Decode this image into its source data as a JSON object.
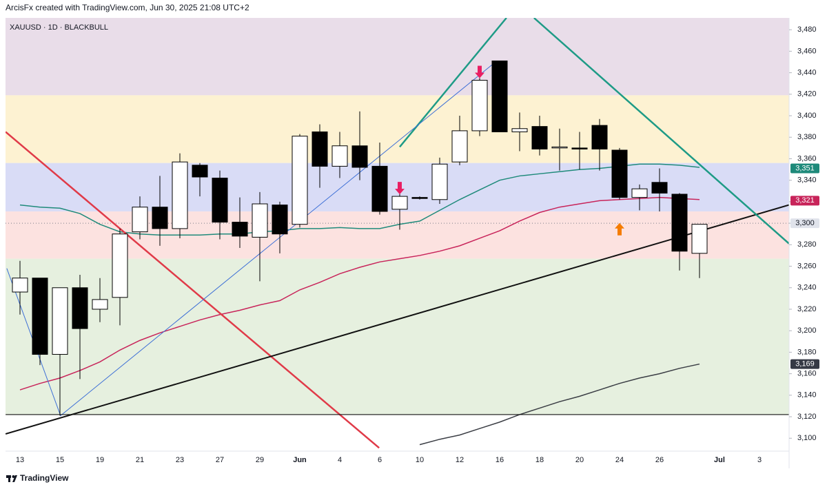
{
  "header": "ArcisFx created with TradingView.com, Jun 30, 2025 21:08 UTC+2",
  "footer": "TradingView",
  "chart_data": {
    "type": "candlestick",
    "symbol": "XAUUSD · 1D · BLACKBULL",
    "categories": [
      "13",
      null,
      "15",
      null,
      "19",
      null,
      "21",
      null,
      "23",
      null,
      "27",
      null,
      "29",
      null,
      "Jun",
      null,
      "4",
      null,
      "6",
      null,
      "10",
      null,
      "12",
      null,
      "16",
      null,
      "18",
      null,
      "20",
      null,
      "24",
      null,
      "26",
      null,
      null
    ],
    "future_ticks": [
      {
        "value": 35,
        "label": "Jul"
      },
      {
        "value": 37,
        "label": "3"
      }
    ],
    "open": [
      3236,
      3249,
      3178,
      3240,
      3220,
      3231,
      3292,
      3315,
      3295,
      3354,
      3342,
      3301,
      3287,
      3317,
      3299,
      3385,
      3353,
      3372,
      3353,
      3313,
      3324,
      3322,
      3357,
      3386,
      3451,
      3385,
      3390,
      3370,
      3370,
      3391,
      3368,
      3324,
      3338,
      3327,
      3272
    ],
    "high": [
      3265,
      3249,
      3240,
      3252,
      3249,
      3295,
      3325,
      3344,
      3365,
      3356,
      3349,
      3324,
      3329,
      3320,
      3383,
      3392,
      3385,
      3404,
      3375,
      3328,
      3325,
      3361,
      3400,
      3435,
      3451,
      3403,
      3400,
      3388,
      3385,
      3397,
      3370,
      3336,
      3351,
      3328,
      3299
    ],
    "low": [
      3215,
      3168,
      3121,
      3155,
      3208,
      3205,
      3285,
      3279,
      3286,
      3325,
      3285,
      3277,
      3246,
      3272,
      3296,
      3333,
      3342,
      3340,
      3308,
      3294,
      3322,
      3318,
      3354,
      3381,
      3385,
      3367,
      3363,
      3349,
      3350,
      3349,
      3322,
      3312,
      3311,
      3256,
      3249
    ],
    "close": [
      3249,
      3178,
      3240,
      3202,
      3229,
      3290,
      3315,
      3295,
      3357,
      3343,
      3301,
      3288,
      3318,
      3290,
      3381,
      3353,
      3372,
      3352,
      3311,
      3325,
      3323,
      3355,
      3386,
      3433,
      3385,
      3388,
      3369,
      3371,
      3369,
      3369,
      3324,
      3332,
      3328,
      3274,
      3299
    ],
    "up_color": "#ffffff",
    "down_color": "#000000",
    "series": [
      {
        "color": "#1e8a7a",
        "tag": {
          "value": 3351,
          "label": "3,351"
        },
        "values": [
          3317,
          3315,
          3314,
          3309,
          3299,
          3292,
          3290,
          3289,
          3289,
          3289,
          3290,
          3290,
          3292,
          3293,
          3295,
          3295,
          3296,
          3295,
          3295,
          3299,
          3302,
          3312,
          3322,
          3331,
          3340,
          3344,
          3346,
          3348,
          3350,
          3351,
          3353,
          3355,
          3355,
          3354,
          3352
        ]
      },
      {
        "color": "#c8245a",
        "tag": {
          "value": 3321,
          "label": "3,321"
        },
        "values": [
          3145,
          3151,
          3156,
          3163,
          3171,
          3182,
          3191,
          3198,
          3204,
          3210,
          3215,
          3219,
          3224,
          3228,
          3238,
          3245,
          3253,
          3259,
          3264,
          3267,
          3270,
          3274,
          3279,
          3286,
          3293,
          3302,
          3310,
          3315,
          3318,
          3321,
          3322,
          3323,
          3324,
          3323,
          3322
        ]
      },
      {
        "color": "#3a3d44",
        "tag": {
          "value": 3169,
          "label": "3,169"
        },
        "values": [
          null,
          null,
          null,
          null,
          null,
          null,
          null,
          null,
          null,
          null,
          null,
          null,
          null,
          null,
          null,
          null,
          null,
          null,
          null,
          null,
          3094,
          3099,
          3103,
          3109,
          3115,
          3122,
          3128,
          3134,
          3139,
          3145,
          3151,
          3156,
          3160,
          3165,
          3169
        ]
      }
    ],
    "last_price": {
      "value": 3300,
      "label": "3,300"
    },
    "zones": [
      {
        "from": 3419,
        "to": 3491,
        "color": "#e9dde9"
      },
      {
        "from": 3356,
        "to": 3419,
        "color": "#fdf2d2"
      },
      {
        "from": 3311,
        "to": 3356,
        "color": "#d9dcf6"
      },
      {
        "from": 3267,
        "to": 3311,
        "color": "#fce2e0"
      },
      {
        "from": 3122,
        "to": 3267,
        "color": "#e6f0df"
      }
    ],
    "trendlines": [
      {
        "color": "#e03a48",
        "width": 2.5,
        "points": [
          [
            -0.72,
            3385
          ],
          [
            17.97,
            3091
          ]
        ]
      },
      {
        "color": "#111111",
        "width": 2,
        "points": [
          [
            -0.72,
            3104
          ],
          [
            38.48,
            3317
          ]
        ]
      },
      {
        "color": "#1e9b86",
        "width": 2.5,
        "points": [
          [
            19,
            3371
          ],
          [
            24.34,
            3491
          ]
        ]
      },
      {
        "color": "#1e9b86",
        "width": 2.5,
        "points": [
          [
            25.72,
            3491
          ],
          [
            38.48,
            3281
          ]
        ]
      },
      {
        "color": "#3d6fd6",
        "width": 1,
        "points": [
          [
            -0.66,
            3258
          ],
          [
            2.03,
            3121
          ],
          [
            23.66,
            3448
          ]
        ]
      },
      {
        "color": "#111111",
        "width": 1.2,
        "points": [
          [
            -0.72,
            3122
          ],
          [
            38.48,
            3122
          ]
        ]
      }
    ],
    "signals": [
      {
        "index": 19,
        "direction": "down",
        "color": "#e91e63"
      },
      {
        "index": 23,
        "direction": "down",
        "color": "#e91e63"
      },
      {
        "index": 30,
        "direction": "up",
        "color": "#f57c00"
      }
    ],
    "ylim": [
      3088,
      3491
    ],
    "yticks": [
      {
        "value": 3100,
        "label": "3,100"
      },
      {
        "value": 3120,
        "label": "3,120"
      },
      {
        "value": 3140,
        "label": "3,140"
      },
      {
        "value": 3160,
        "label": "3,160"
      },
      {
        "value": 3180,
        "label": "3,180"
      },
      {
        "value": 3200,
        "label": "3,200"
      },
      {
        "value": 3220,
        "label": "3,220"
      },
      {
        "value": 3240,
        "label": "3,240"
      },
      {
        "value": 3260,
        "label": "3,260"
      },
      {
        "value": 3280,
        "label": "3,280"
      },
      {
        "value": 3300,
        "label": "3,300"
      },
      {
        "value": 3320,
        "label": "3,320"
      },
      {
        "value": 3340,
        "label": "3,340"
      },
      {
        "value": 3360,
        "label": "3,360"
      },
      {
        "value": 3380,
        "label": "3,380"
      },
      {
        "value": 3400,
        "label": "3,400"
      },
      {
        "value": 3420,
        "label": "3,420"
      },
      {
        "value": 3440,
        "label": "3,440"
      },
      {
        "value": 3460,
        "label": "3,460"
      },
      {
        "value": 3480,
        "label": "3,480"
      }
    ],
    "grid": false
  }
}
